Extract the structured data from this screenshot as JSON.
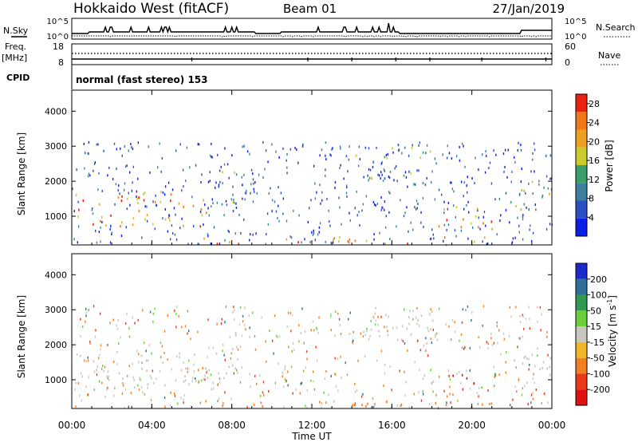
{
  "header": {
    "station": "Hokkaido West (fitACF)",
    "beam": "Beam 01",
    "date": "27/Jan/2019"
  },
  "panels": {
    "nsky_label": "N.Sky",
    "nsearch_label": "N.Search",
    "noise_ticks": [
      "10^5",
      "10^0"
    ],
    "freq_label": "Freq.",
    "freq_unit": "[MHz]",
    "freq_ticks": [
      "18",
      "8"
    ],
    "nave_label": "Nave",
    "nave_ticks": [
      "60",
      "0"
    ],
    "cpid_label": "CPID",
    "cpid_text": "normal (fast stereo) 153"
  },
  "chart_data": [
    {
      "type": "heatmap",
      "name": "power",
      "ylabel": "Slant Range [km]",
      "xlabel": "Time UT",
      "x_ticks": [
        "00:00",
        "04:00",
        "08:00",
        "12:00",
        "16:00",
        "20:00",
        "00:00"
      ],
      "xlim_hours": [
        0,
        24
      ],
      "ylim_km": [
        180,
        4600
      ],
      "y_ticks": [
        1000,
        2000,
        3000,
        4000
      ],
      "colorbar": {
        "label": "Power [dB]",
        "ticks": [
          4,
          8,
          12,
          16,
          20,
          24,
          28
        ],
        "range": [
          0,
          30
        ],
        "colors": [
          "#0a1ee6",
          "#2a4fc4",
          "#3d7fa0",
          "#3a9e68",
          "#c9cc2a",
          "#f0a020",
          "#f07818",
          "#ec2010"
        ]
      },
      "regions": [
        {
          "t0": 0.0,
          "t1": 7.2,
          "r0": 700,
          "r1": 1700,
          "level": 22
        },
        {
          "t0": 7.2,
          "t1": 8.6,
          "r0": 1100,
          "r1": 2400,
          "level": 10
        },
        {
          "t0": 13.8,
          "t1": 18.4,
          "r0": 1900,
          "r1": 3050,
          "level": 12
        },
        {
          "t0": 17.8,
          "t1": 21.0,
          "r0": 600,
          "r1": 1300,
          "level": 20
        },
        {
          "t0": 21.8,
          "t1": 24.0,
          "r0": 900,
          "r1": 2000,
          "level": 16
        },
        {
          "t0": 6.5,
          "t1": 21.5,
          "r0": 180,
          "r1": 400,
          "level": 24
        }
      ]
    },
    {
      "type": "heatmap",
      "name": "velocity",
      "ylabel": "Slant Range [km]",
      "xlabel": "Time UT",
      "x_ticks": [
        "00:00",
        "04:00",
        "08:00",
        "12:00",
        "16:00",
        "20:00",
        "00:00"
      ],
      "xlim_hours": [
        0,
        24
      ],
      "ylim_km": [
        180,
        4600
      ],
      "y_ticks": [
        1000,
        2000,
        3000,
        4000
      ],
      "colorbar": {
        "label": "Velocity [m s^-1]",
        "ticks": [
          200,
          100,
          50,
          15,
          -15,
          -50,
          -100,
          -200
        ],
        "colors": [
          "#1a2ac8",
          "#2d6f9a",
          "#2f9a50",
          "#6ccf3a",
          "#c8c8c0",
          "#f0b828",
          "#f08020",
          "#ec3818",
          "#e01010"
        ]
      },
      "regions": [
        {
          "t0": 0.0,
          "t1": 7.2,
          "r0": 700,
          "r1": 1700,
          "level": 0
        },
        {
          "t0": 7.2,
          "t1": 8.6,
          "r0": 1100,
          "r1": 2400,
          "level": 0
        },
        {
          "t0": 13.8,
          "t1": 18.4,
          "r0": 1900,
          "r1": 3050,
          "level": 0
        },
        {
          "t0": 18.8,
          "t1": 20.4,
          "r0": 650,
          "r1": 1250,
          "level": -150
        },
        {
          "t0": 20.4,
          "t1": 21.4,
          "r0": 650,
          "r1": 1200,
          "level": 30
        },
        {
          "t0": 21.8,
          "t1": 24.0,
          "r0": 900,
          "r1": 2000,
          "level": 5
        },
        {
          "t0": 6.5,
          "t1": 21.5,
          "r0": 180,
          "r1": 400,
          "level": -40
        }
      ]
    }
  ]
}
